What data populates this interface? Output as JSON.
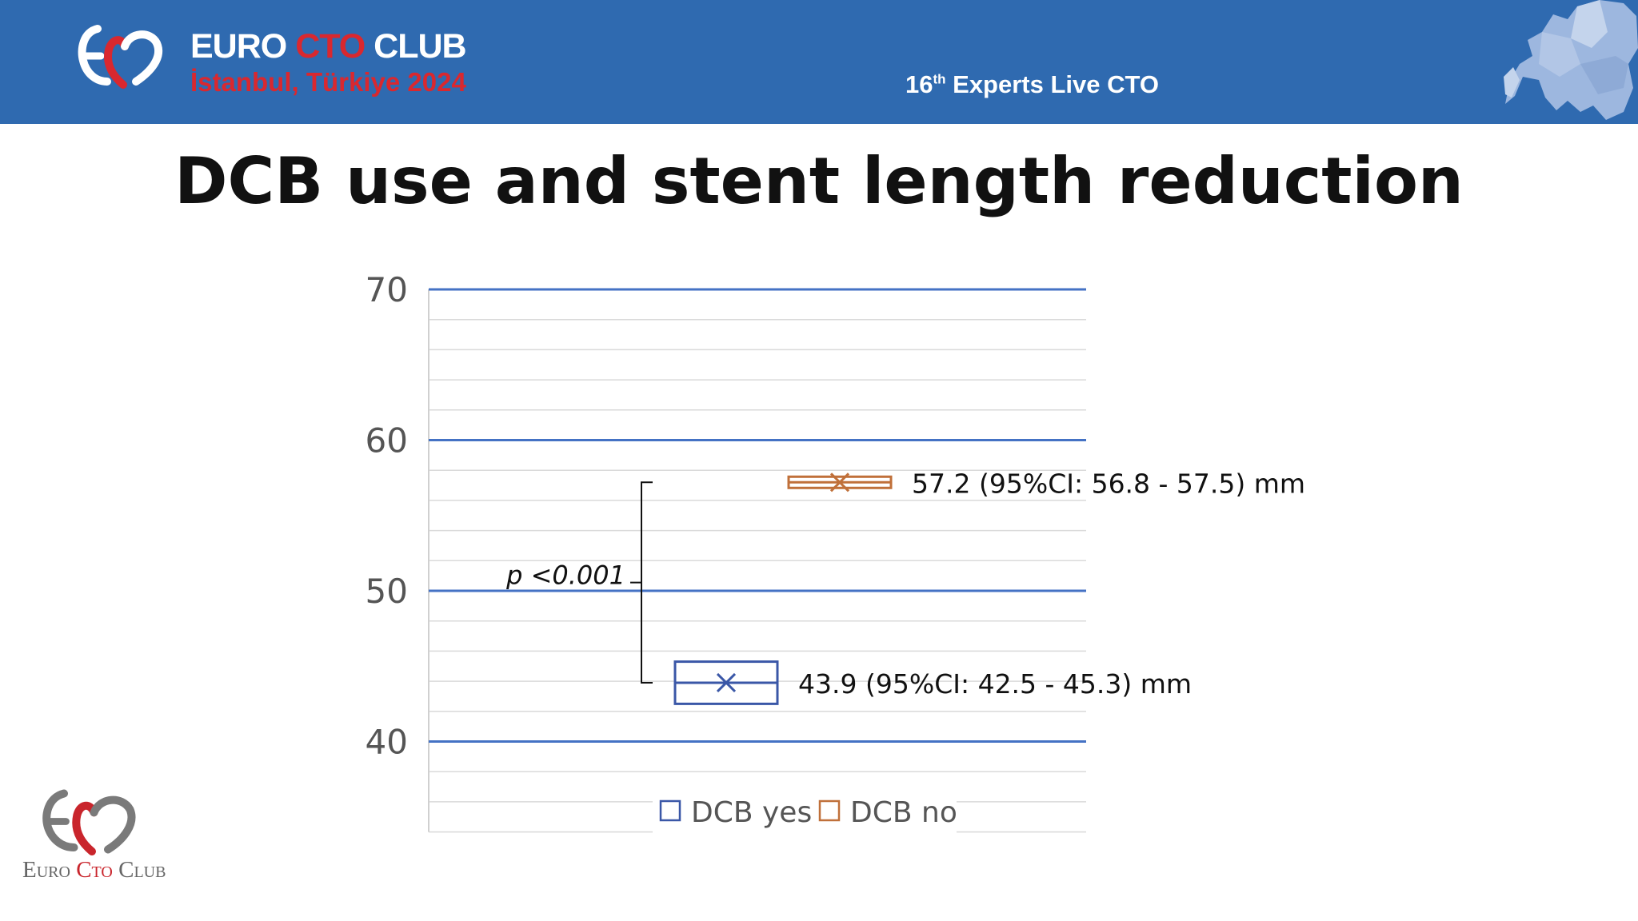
{
  "header": {
    "org_first": "EURO",
    "org_middle": "CTO",
    "org_last": "CLUB",
    "location": "İstanbul, Türkiye 2024",
    "event_prefix": "16",
    "event_sup": "th",
    "event_rest": " Experts Live CTO"
  },
  "slide": {
    "title": "DCB use and stent length reduction"
  },
  "chart_data": {
    "type": "box",
    "ylim": [
      34,
      70
    ],
    "yticks": [
      40,
      50,
      60,
      70
    ],
    "grid": true,
    "legend_position": "bottom",
    "series": [
      {
        "name": "DCB yes",
        "mean": 43.9,
        "ci_low": 42.5,
        "ci_high": 45.3,
        "unit": "mm",
        "label": "43.9 (95%CI: 42.5 - 45.3) mm",
        "color": "#3a57a7"
      },
      {
        "name": "DCB no",
        "mean": 57.2,
        "ci_low": 56.8,
        "ci_high": 57.5,
        "unit": "mm",
        "label": "57.2 (95%CI: 56.8 - 57.5) mm",
        "color": "#c0703a"
      }
    ],
    "annotation": {
      "text": "p <0.001"
    }
  },
  "footer": {
    "logo_first": "Euro ",
    "logo_middle": "Cto",
    "logo_last": " Club"
  },
  "colors": {
    "header_bg": "#2f6ab0",
    "accent_red": "#d9282f",
    "gridline_major": "#4472c4"
  }
}
